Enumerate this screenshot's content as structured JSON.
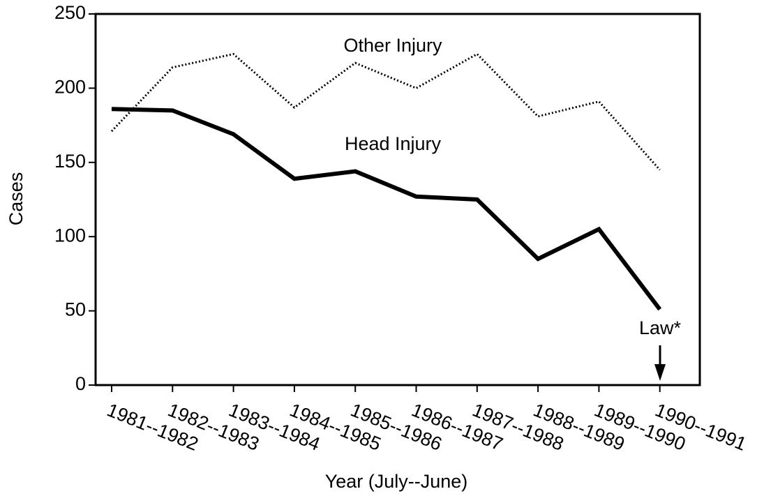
{
  "chart_data": {
    "type": "line",
    "x_label": "Year (July--June)",
    "y_label": "Cases",
    "categories": [
      "1981--1982",
      "1982--1983",
      "1983--1984",
      "1984--1985",
      "1985--1986",
      "1986--1987",
      "1987--1988",
      "1988--1989",
      "1989--1990",
      "1990--1991"
    ],
    "series": [
      {
        "name": "Other Injury",
        "color": "#000000",
        "dash": "dotted",
        "values": [
          171,
          214,
          223,
          187,
          217,
          200,
          223,
          181,
          191,
          145
        ]
      },
      {
        "name": "Head Injury",
        "color": "#000000",
        "dash": "solid",
        "values": [
          186,
          185,
          169,
          139,
          144,
          127,
          125,
          85,
          105,
          51
        ]
      }
    ],
    "annotation": "Law*",
    "ylim": [
      0,
      250
    ],
    "yticks": [
      0,
      50,
      100,
      150,
      200,
      250
    ]
  }
}
